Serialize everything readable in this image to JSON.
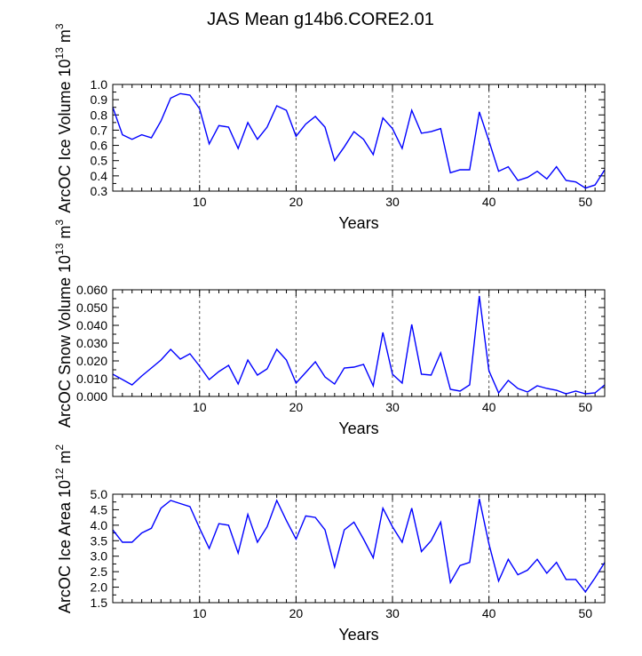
{
  "title": "JAS Mean g14b6.CORE2.01",
  "chart_data": [
    {
      "type": "line",
      "ylabel": "ArcOC Ice Volume",
      "ylabel_power": "13",
      "ylabel_unit_base": "m",
      "ylabel_unit_exp": "3",
      "xlabel": "Years",
      "xlim": [
        1,
        52
      ],
      "ylim": [
        0.3,
        1.0
      ],
      "xticks": [
        10,
        20,
        30,
        40,
        50
      ],
      "yticks": [
        "0.3",
        "0.4",
        "0.5",
        "0.6",
        "0.7",
        "0.8",
        "0.9",
        "1.0"
      ],
      "vlines": [
        10,
        20,
        30,
        40,
        50
      ],
      "series": [
        {
          "name": "ArcOC Ice Volume",
          "x": [
            1,
            2,
            3,
            4,
            5,
            6,
            7,
            8,
            9,
            10,
            11,
            12,
            13,
            14,
            15,
            16,
            17,
            18,
            19,
            20,
            21,
            22,
            23,
            24,
            25,
            26,
            27,
            28,
            29,
            30,
            31,
            32,
            33,
            34,
            35,
            36,
            37,
            38,
            39,
            40,
            41,
            42,
            43,
            44,
            45,
            46,
            47,
            48,
            49,
            50,
            51,
            52
          ],
          "values": [
            0.85,
            0.67,
            0.64,
            0.67,
            0.65,
            0.76,
            0.91,
            0.94,
            0.93,
            0.84,
            0.61,
            0.73,
            0.72,
            0.58,
            0.75,
            0.64,
            0.72,
            0.86,
            0.83,
            0.66,
            0.74,
            0.79,
            0.72,
            0.5,
            0.59,
            0.69,
            0.64,
            0.54,
            0.78,
            0.71,
            0.58,
            0.83,
            0.68,
            0.69,
            0.71,
            0.42,
            0.44,
            0.44,
            0.82,
            0.63,
            0.43,
            0.46,
            0.37,
            0.39,
            0.43,
            0.38,
            0.46,
            0.37,
            0.36,
            0.32,
            0.34,
            0.44
          ]
        }
      ]
    },
    {
      "type": "line",
      "ylabel": "ArcOC Snow Volume",
      "ylabel_power": "13",
      "ylabel_unit_base": "m",
      "ylabel_unit_exp": "3",
      "xlabel": "Years",
      "xlim": [
        1,
        52
      ],
      "ylim": [
        0.0,
        0.06
      ],
      "xticks": [
        10,
        20,
        30,
        40,
        50
      ],
      "yticks": [
        "0.000",
        "0.010",
        "0.020",
        "0.030",
        "0.040",
        "0.050",
        "0.060"
      ],
      "vlines": [
        10,
        20,
        30,
        40,
        50
      ],
      "series": [
        {
          "name": "ArcOC Snow Volume",
          "x": [
            1,
            2,
            3,
            4,
            5,
            6,
            7,
            8,
            9,
            10,
            11,
            12,
            13,
            14,
            15,
            16,
            17,
            18,
            19,
            20,
            21,
            22,
            23,
            24,
            25,
            26,
            27,
            28,
            29,
            30,
            31,
            32,
            33,
            34,
            35,
            36,
            37,
            38,
            39,
            40,
            41,
            42,
            43,
            44,
            45,
            46,
            47,
            48,
            49,
            50,
            51,
            52
          ],
          "values": [
            0.0125,
            0.0095,
            0.0065,
            0.0115,
            0.016,
            0.0205,
            0.0265,
            0.021,
            0.024,
            0.017,
            0.0095,
            0.014,
            0.0175,
            0.007,
            0.0205,
            0.012,
            0.0155,
            0.0265,
            0.0205,
            0.0075,
            0.0135,
            0.0195,
            0.011,
            0.007,
            0.016,
            0.0165,
            0.018,
            0.006,
            0.036,
            0.0125,
            0.0075,
            0.0405,
            0.0125,
            0.012,
            0.0245,
            0.004,
            0.003,
            0.0065,
            0.0565,
            0.0145,
            0.002,
            0.009,
            0.0045,
            0.0025,
            0.006,
            0.0045,
            0.0035,
            0.0015,
            0.003,
            0.0015,
            0.002,
            0.0065
          ]
        }
      ]
    },
    {
      "type": "line",
      "ylabel": "ArcOC Ice Area",
      "ylabel_power": "12",
      "ylabel_unit_base": "m",
      "ylabel_unit_exp": "2",
      "xlabel": "Years",
      "xlim": [
        1,
        52
      ],
      "ylim": [
        1.5,
        5.0
      ],
      "xticks": [
        10,
        20,
        30,
        40,
        50
      ],
      "yticks": [
        "1.5",
        "2.0",
        "2.5",
        "3.0",
        "3.5",
        "4.0",
        "4.5",
        "5.0"
      ],
      "vlines": [
        10,
        20,
        30,
        40,
        50
      ],
      "series": [
        {
          "name": "ArcOC Ice Area",
          "x": [
            1,
            2,
            3,
            4,
            5,
            6,
            7,
            8,
            9,
            10,
            11,
            12,
            13,
            14,
            15,
            16,
            17,
            18,
            19,
            20,
            21,
            22,
            23,
            24,
            25,
            26,
            27,
            28,
            29,
            30,
            31,
            32,
            33,
            34,
            35,
            36,
            37,
            38,
            39,
            40,
            41,
            42,
            43,
            44,
            45,
            46,
            47,
            48,
            49,
            50,
            51,
            52
          ],
          "values": [
            3.85,
            3.45,
            3.45,
            3.75,
            3.9,
            4.55,
            4.8,
            4.7,
            4.6,
            3.9,
            3.25,
            4.05,
            4.0,
            3.1,
            4.35,
            3.45,
            3.95,
            4.8,
            4.15,
            3.55,
            4.3,
            4.25,
            3.85,
            2.65,
            3.85,
            4.1,
            3.55,
            2.95,
            4.55,
            3.95,
            3.45,
            4.55,
            3.15,
            3.5,
            4.1,
            2.15,
            2.7,
            2.8,
            4.85,
            3.4,
            2.2,
            2.9,
            2.4,
            2.55,
            2.9,
            2.45,
            2.8,
            2.25,
            2.25,
            1.85,
            2.3,
            2.8
          ]
        }
      ]
    }
  ]
}
